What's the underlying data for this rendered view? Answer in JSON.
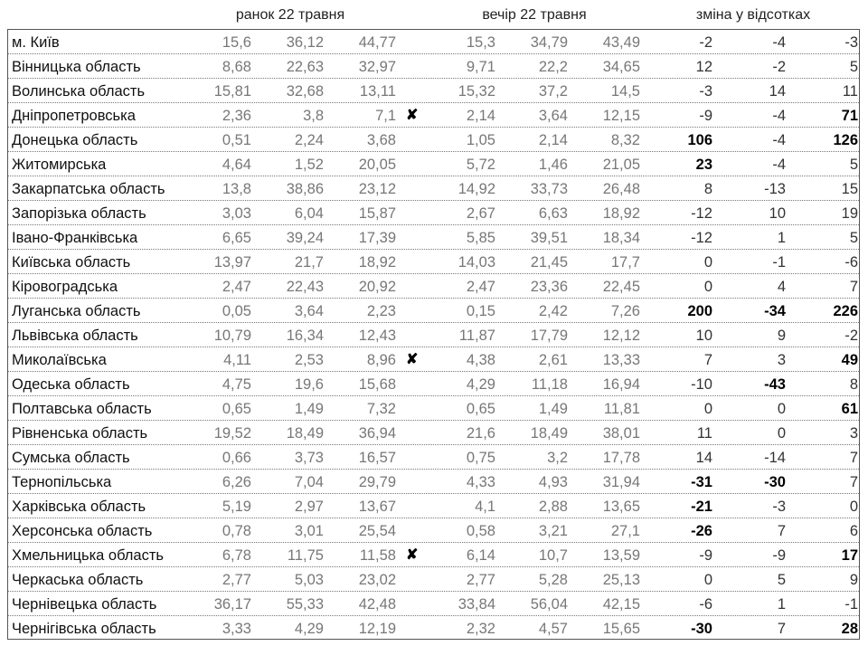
{
  "headers": {
    "morning": "ранок 22 травня",
    "evening": "вечір 22 травня",
    "change": "зміна у відсотках"
  },
  "mark_symbol": "✘",
  "rows": [
    {
      "name": "м. Київ",
      "morning": [
        "15,6",
        "36,12",
        "44,77"
      ],
      "mark": false,
      "evening": [
        "15,3",
        "34,79",
        "43,49"
      ],
      "change": [
        "-2",
        "-4",
        "-3"
      ],
      "bold": [
        false,
        false,
        false
      ]
    },
    {
      "name": "Вінницька область",
      "morning": [
        "8,68",
        "22,63",
        "32,97"
      ],
      "mark": false,
      "evening": [
        "9,71",
        "22,2",
        "34,65"
      ],
      "change": [
        "12",
        "-2",
        "5"
      ],
      "bold": [
        false,
        false,
        false
      ]
    },
    {
      "name": "Волинська область",
      "morning": [
        "15,81",
        "32,68",
        "13,11"
      ],
      "mark": false,
      "evening": [
        "15,32",
        "37,2",
        "14,5"
      ],
      "change": [
        "-3",
        "14",
        "11"
      ],
      "bold": [
        false,
        false,
        false
      ]
    },
    {
      "name": "Дніпропетровська",
      "morning": [
        "2,36",
        "3,8",
        "7,1"
      ],
      "mark": true,
      "evening": [
        "2,14",
        "3,64",
        "12,15"
      ],
      "change": [
        "-9",
        "-4",
        "71"
      ],
      "bold": [
        false,
        false,
        true
      ]
    },
    {
      "name": "Донецька область",
      "morning": [
        "0,51",
        "2,24",
        "3,68"
      ],
      "mark": false,
      "evening": [
        "1,05",
        "2,14",
        "8,32"
      ],
      "change": [
        "106",
        "-4",
        "126"
      ],
      "bold": [
        true,
        false,
        true
      ]
    },
    {
      "name": "Житомирська",
      "morning": [
        "4,64",
        "1,52",
        "20,05"
      ],
      "mark": false,
      "evening": [
        "5,72",
        "1,46",
        "21,05"
      ],
      "change": [
        "23",
        "-4",
        "5"
      ],
      "bold": [
        true,
        false,
        false
      ]
    },
    {
      "name": "Закарпатська область",
      "morning": [
        "13,8",
        "38,86",
        "23,12"
      ],
      "mark": false,
      "evening": [
        "14,92",
        "33,73",
        "26,48"
      ],
      "change": [
        "8",
        "-13",
        "15"
      ],
      "bold": [
        false,
        false,
        false
      ]
    },
    {
      "name": "Запорізька область",
      "morning": [
        "3,03",
        "6,04",
        "15,87"
      ],
      "mark": false,
      "evening": [
        "2,67",
        "6,63",
        "18,92"
      ],
      "change": [
        "-12",
        "10",
        "19"
      ],
      "bold": [
        false,
        false,
        false
      ]
    },
    {
      "name": "Івано-Франківська",
      "morning": [
        "6,65",
        "39,24",
        "17,39"
      ],
      "mark": false,
      "evening": [
        "5,85",
        "39,51",
        "18,34"
      ],
      "change": [
        "-12",
        "1",
        "5"
      ],
      "bold": [
        false,
        false,
        false
      ]
    },
    {
      "name": "Київська область",
      "morning": [
        "13,97",
        "21,7",
        "18,92"
      ],
      "mark": false,
      "evening": [
        "14,03",
        "21,45",
        "17,7"
      ],
      "change": [
        "0",
        "-1",
        "-6"
      ],
      "bold": [
        false,
        false,
        false
      ]
    },
    {
      "name": "Кіровоградська",
      "morning": [
        "2,47",
        "22,43",
        "20,92"
      ],
      "mark": false,
      "evening": [
        "2,47",
        "23,36",
        "22,45"
      ],
      "change": [
        "0",
        "4",
        "7"
      ],
      "bold": [
        false,
        false,
        false
      ]
    },
    {
      "name": "Луганська область",
      "morning": [
        "0,05",
        "3,64",
        "2,23"
      ],
      "mark": false,
      "evening": [
        "0,15",
        "2,42",
        "7,26"
      ],
      "change": [
        "200",
        "-34",
        "226"
      ],
      "bold": [
        true,
        true,
        true
      ]
    },
    {
      "name": "Львівська область",
      "morning": [
        "10,79",
        "16,34",
        "12,43"
      ],
      "mark": false,
      "evening": [
        "11,87",
        "17,79",
        "12,12"
      ],
      "change": [
        "10",
        "9",
        "-2"
      ],
      "bold": [
        false,
        false,
        false
      ]
    },
    {
      "name": "Миколаївська",
      "morning": [
        "4,11",
        "2,53",
        "8,96"
      ],
      "mark": true,
      "evening": [
        "4,38",
        "2,61",
        "13,33"
      ],
      "change": [
        "7",
        "3",
        "49"
      ],
      "bold": [
        false,
        false,
        true
      ]
    },
    {
      "name": "Одеська область",
      "morning": [
        "4,75",
        "19,6",
        "15,68"
      ],
      "mark": false,
      "evening": [
        "4,29",
        "11,18",
        "16,94"
      ],
      "change": [
        "-10",
        "-43",
        "8"
      ],
      "bold": [
        false,
        true,
        false
      ]
    },
    {
      "name": "Полтавська область",
      "morning": [
        "0,65",
        "1,49",
        "7,32"
      ],
      "mark": false,
      "evening": [
        "0,65",
        "1,49",
        "11,81"
      ],
      "change": [
        "0",
        "0",
        "61"
      ],
      "bold": [
        false,
        false,
        true
      ]
    },
    {
      "name": "Рівненська область",
      "morning": [
        "19,52",
        "18,49",
        "36,94"
      ],
      "mark": false,
      "evening": [
        "21,6",
        "18,49",
        "38,01"
      ],
      "change": [
        "11",
        "0",
        "3"
      ],
      "bold": [
        false,
        false,
        false
      ]
    },
    {
      "name": "Сумська область",
      "morning": [
        "0,66",
        "3,73",
        "16,57"
      ],
      "mark": false,
      "evening": [
        "0,75",
        "3,2",
        "17,78"
      ],
      "change": [
        "14",
        "-14",
        "7"
      ],
      "bold": [
        false,
        false,
        false
      ]
    },
    {
      "name": "Тернопільська",
      "morning": [
        "6,26",
        "7,04",
        "29,79"
      ],
      "mark": false,
      "evening": [
        "4,33",
        "4,93",
        "31,94"
      ],
      "change": [
        "-31",
        "-30",
        "7"
      ],
      "bold": [
        true,
        true,
        false
      ]
    },
    {
      "name": "Харківська область",
      "morning": [
        "5,19",
        "2,97",
        "13,67"
      ],
      "mark": false,
      "evening": [
        "4,1",
        "2,88",
        "13,65"
      ],
      "change": [
        "-21",
        "-3",
        "0"
      ],
      "bold": [
        true,
        false,
        false
      ]
    },
    {
      "name": "Херсонська область",
      "morning": [
        "0,78",
        "3,01",
        "25,54"
      ],
      "mark": false,
      "evening": [
        "0,58",
        "3,21",
        "27,1"
      ],
      "change": [
        "-26",
        "7",
        "6"
      ],
      "bold": [
        true,
        false,
        false
      ]
    },
    {
      "name": "Хмельницька область",
      "morning": [
        "6,78",
        "11,75",
        "11,58"
      ],
      "mark": true,
      "evening": [
        "6,14",
        "10,7",
        "13,59"
      ],
      "change": [
        "-9",
        "-9",
        "17"
      ],
      "bold": [
        false,
        false,
        true
      ]
    },
    {
      "name": "Черкаська область",
      "morning": [
        "2,77",
        "5,03",
        "23,02"
      ],
      "mark": false,
      "evening": [
        "2,77",
        "5,28",
        "25,13"
      ],
      "change": [
        "0",
        "5",
        "9"
      ],
      "bold": [
        false,
        false,
        false
      ]
    },
    {
      "name": "Чернівецька область",
      "morning": [
        "36,17",
        "55,33",
        "42,48"
      ],
      "mark": false,
      "evening": [
        "33,84",
        "56,04",
        "42,15"
      ],
      "change": [
        "-6",
        "1",
        "-1"
      ],
      "bold": [
        false,
        false,
        false
      ]
    },
    {
      "name": "Чернігівська область",
      "morning": [
        "3,33",
        "4,29",
        "12,19"
      ],
      "mark": false,
      "evening": [
        "2,32",
        "4,57",
        "15,65"
      ],
      "change": [
        "-30",
        "7",
        "28"
      ],
      "bold": [
        true,
        false,
        true
      ]
    }
  ]
}
